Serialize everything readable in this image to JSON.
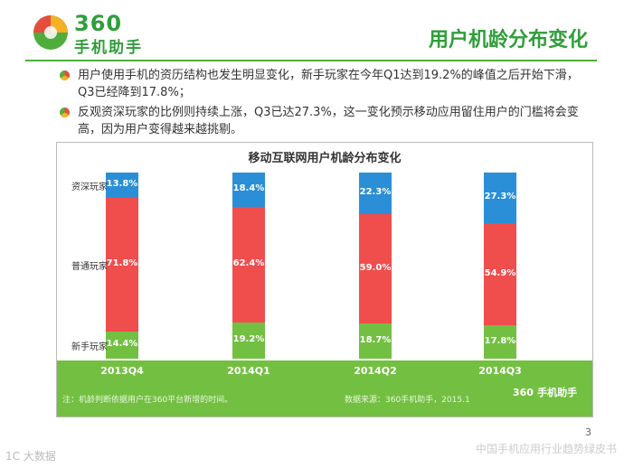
{
  "header": {
    "logo_number": "360",
    "logo_name": "手机助手",
    "title": "用户机龄分布变化"
  },
  "bullets": [
    "用户使用手机的资历结构也发生明显变化，新手玩家在今年Q1达到19.2%的峰值之后开始下滑，Q3已经降到17.8%；",
    "反观资深玩家的比例则持续上涨，Q3已达27.3%，这一变化预示移动应用留住用户的门槛将会变高，因为用户变得越来越挑剔。"
  ],
  "chart_data": {
    "type": "bar",
    "stacked": true,
    "title": "移动互联网用户机龄分布变化",
    "categories": [
      "2013Q4",
      "2014Q1",
      "2014Q2",
      "2014Q3"
    ],
    "series": [
      {
        "name": "新手玩家",
        "color": "#73bf42",
        "values": [
          14.4,
          19.2,
          18.7,
          17.8
        ]
      },
      {
        "name": "普通玩家",
        "color": "#f04d4d",
        "values": [
          71.8,
          62.4,
          59.0,
          54.9
        ]
      },
      {
        "name": "资深玩家",
        "color": "#2a8fd6",
        "values": [
          13.8,
          18.4,
          22.3,
          27.3
        ]
      }
    ],
    "ylim": [
      0,
      100
    ],
    "value_suffix": "%",
    "note": "注：机龄判断依据用户在360平台新增的时间。",
    "source": "数据来源：360手机助手，2015.1"
  },
  "chart_band_logo": {
    "number": "360",
    "name": "手机助手"
  },
  "page_number": "3",
  "footer_text": "中国手机应用行业趋势绿皮书",
  "watermark": "大数据",
  "watermark_prefix": "1C"
}
